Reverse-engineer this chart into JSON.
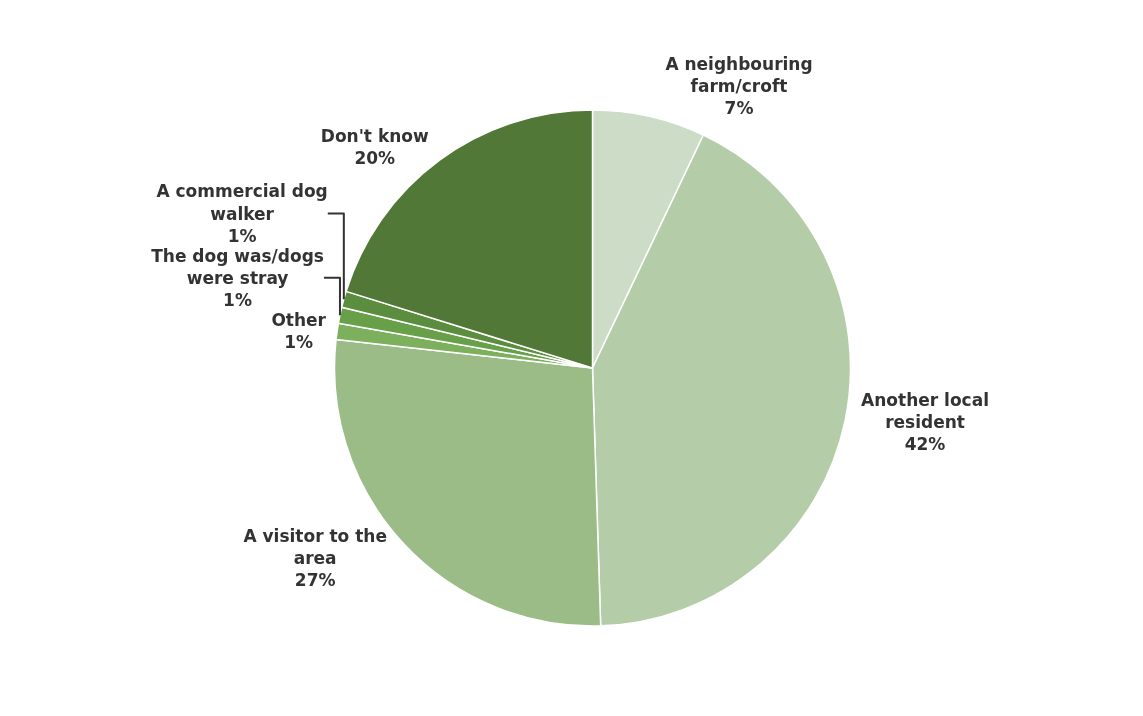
{
  "chart_data": {
    "type": "pie",
    "categories": [
      "A neighbouring farm/croft",
      "Another local resident",
      "A visitor to the area",
      "Other",
      "The dog was/dogs were stray",
      "A commercial dog walker",
      "Don't know"
    ],
    "values": [
      7,
      42,
      27,
      1,
      1,
      1,
      20
    ],
    "colors": [
      "#cddcc7",
      "#b4cda8",
      "#9bbc87",
      "#7cb05c",
      "#68a04a",
      "#5b8d3e",
      "#517836"
    ],
    "value_labels": [
      "7%",
      "42%",
      "27%",
      "1%",
      "1%",
      "1%",
      "20%"
    ],
    "legend": false
  }
}
